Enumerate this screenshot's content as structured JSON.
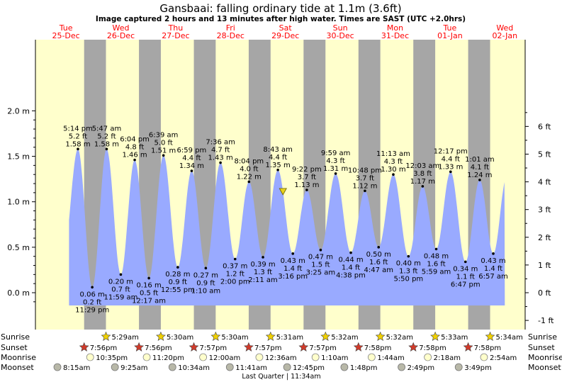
{
  "title": "Gansbaai: falling  ordinary tide at 1.1m (3.6ft)",
  "subtitle": "Image captured 2 hours and 13 minutes after high water. Times are SAST (UTC +2.0hrs)",
  "colors": {
    "day": "#ffffcc",
    "night": "#a6a6a6",
    "tide_fill": "#99aaff",
    "date_text": "#ff0000",
    "sunset_star": "#d03a2a",
    "sunrise_star": "#f0d000"
  },
  "days": [
    {
      "dow": "Tue",
      "date": "25-Dec"
    },
    {
      "dow": "Wed",
      "date": "26-Dec"
    },
    {
      "dow": "Thu",
      "date": "27-Dec"
    },
    {
      "dow": "Fri",
      "date": "28-Dec"
    },
    {
      "dow": "Sat",
      "date": "29-Dec"
    },
    {
      "dow": "Sun",
      "date": "30-Dec"
    },
    {
      "dow": "Mon",
      "date": "31-Dec"
    },
    {
      "dow": "Tue",
      "date": "01-Jan"
    },
    {
      "dow": "Wed",
      "date": "02-Jan"
    }
  ],
  "chart_data": {
    "type": "area",
    "title": "Gansbaai: falling  ordinary tide at 1.1m (3.6ft)",
    "left_axis": {
      "unit": "m",
      "range": [
        -0.2,
        2.0
      ],
      "ticks": [
        "2.0 m",
        "1.5 m",
        "1.0 m",
        "0.5 m",
        "0.0 m"
      ],
      "tick_values": [
        2.0,
        1.5,
        1.0,
        0.5,
        0.0
      ]
    },
    "right_axis": {
      "unit": "ft",
      "ticks": [
        "6 ft",
        "5 ft",
        "4 ft",
        "3 ft",
        "2 ft",
        "1 ft",
        "0 ft",
        "-1 ft"
      ],
      "tick_values": [
        6,
        5,
        4,
        3,
        2,
        1,
        0,
        -1
      ]
    },
    "x_axis": {
      "start": "2018-12-25 00:00",
      "end": "2019-01-02 00:00"
    },
    "current": {
      "time": "2018-12-29 10:56",
      "height_m": 1.1
    },
    "tides": [
      {
        "type": "high",
        "time": "2018-12-25 17:14",
        "time_label": "5:14 pm",
        "ft": "5.2 ft",
        "m": 1.58,
        "m_label": "1.58 m"
      },
      {
        "type": "low",
        "time": "2018-12-25 23:29",
        "time_label": "11:29 pm",
        "ft": "0.2 ft",
        "m": 0.06,
        "m_label": "0.06 m"
      },
      {
        "type": "high",
        "time": "2018-12-26 05:47",
        "time_label": "5:47 am",
        "ft": "5.2 ft",
        "m": 1.58,
        "m_label": "1.58 m"
      },
      {
        "type": "low",
        "time": "2018-12-26 11:59",
        "time_label": "11:59 am",
        "ft": "0.7 ft",
        "m": 0.2,
        "m_label": "0.20 m"
      },
      {
        "type": "high",
        "time": "2018-12-26 18:04",
        "time_label": "6:04 pm",
        "ft": "4.8 ft",
        "m": 1.46,
        "m_label": "1.46 m"
      },
      {
        "type": "low",
        "time": "2018-12-27 00:17",
        "time_label": "12:17 am",
        "ft": "0.5 ft",
        "m": 0.16,
        "m_label": "0.16 m"
      },
      {
        "type": "high",
        "time": "2018-12-27 06:39",
        "time_label": "6:39 am",
        "ft": "5.0 ft",
        "m": 1.51,
        "m_label": "1.51 m"
      },
      {
        "type": "low",
        "time": "2018-12-27 12:55",
        "time_label": "12:55 pm",
        "ft": "0.9 ft",
        "m": 0.28,
        "m_label": "0.28 m"
      },
      {
        "type": "high",
        "time": "2018-12-27 18:59",
        "time_label": "6:59 pm",
        "ft": "4.4 ft",
        "m": 1.34,
        "m_label": "1.34 m"
      },
      {
        "type": "low",
        "time": "2018-12-28 01:10",
        "time_label": "1:10 am",
        "ft": "0.9 ft",
        "m": 0.27,
        "m_label": "0.27 m"
      },
      {
        "type": "high",
        "time": "2018-12-28 07:36",
        "time_label": "7:36 am",
        "ft": "4.7 ft",
        "m": 1.43,
        "m_label": "1.43 m"
      },
      {
        "type": "low",
        "time": "2018-12-28 14:00",
        "time_label": "2:00 pm",
        "ft": "1.2 ft",
        "m": 0.37,
        "m_label": "0.37 m"
      },
      {
        "type": "high",
        "time": "2018-12-28 20:04",
        "time_label": "8:04 pm",
        "ft": "4.0 ft",
        "m": 1.22,
        "m_label": "1.22 m"
      },
      {
        "type": "low",
        "time": "2018-12-29 02:11",
        "time_label": "2:11 am",
        "ft": "1.3 ft",
        "m": 0.39,
        "m_label": "0.39 m"
      },
      {
        "type": "high",
        "time": "2018-12-29 08:43",
        "time_label": "8:43 am",
        "ft": "4.4 ft",
        "m": 1.35,
        "m_label": "1.35 m"
      },
      {
        "type": "low",
        "time": "2018-12-29 15:16",
        "time_label": "3:16 pm",
        "ft": "1.4 ft",
        "m": 0.43,
        "m_label": "0.43 m"
      },
      {
        "type": "high",
        "time": "2018-12-29 21:22",
        "time_label": "9:22 pm",
        "ft": "3.7 ft",
        "m": 1.13,
        "m_label": "1.13 m"
      },
      {
        "type": "low",
        "time": "2018-12-30 03:25",
        "time_label": "3:25 am",
        "ft": "1.5 ft",
        "m": 0.47,
        "m_label": "0.47 m"
      },
      {
        "type": "high",
        "time": "2018-12-30 09:59",
        "time_label": "9:59 am",
        "ft": "4.3 ft",
        "m": 1.31,
        "m_label": "1.31 m"
      },
      {
        "type": "low",
        "time": "2018-12-30 16:38",
        "time_label": "4:38 pm",
        "ft": "1.4 ft",
        "m": 0.44,
        "m_label": "0.44 m"
      },
      {
        "type": "high",
        "time": "2018-12-30 22:48",
        "time_label": "10:48 pm",
        "ft": "3.7 ft",
        "m": 1.12,
        "m_label": "1.12 m"
      },
      {
        "type": "low",
        "time": "2018-12-31 04:47",
        "time_label": "4:47 am",
        "ft": "1.6 ft",
        "m": 0.5,
        "m_label": "0.50 m"
      },
      {
        "type": "high",
        "time": "2018-12-31 11:13",
        "time_label": "11:13 am",
        "ft": "4.3 ft",
        "m": 1.3,
        "m_label": "1.30 m"
      },
      {
        "type": "low",
        "time": "2018-12-31 17:50",
        "time_label": "5:50 pm",
        "ft": "1.3 ft",
        "m": 0.4,
        "m_label": "0.40 m"
      },
      {
        "type": "high",
        "time": "2019-01-01 00:03",
        "time_label": "12:03 am",
        "ft": "3.8 ft",
        "m": 1.17,
        "m_label": "1.17 m"
      },
      {
        "type": "low",
        "time": "2019-01-01 05:59",
        "time_label": "5:59 am",
        "ft": "1.6 ft",
        "m": 0.48,
        "m_label": "0.48 m"
      },
      {
        "type": "high",
        "time": "2019-01-01 12:17",
        "time_label": "12:17 pm",
        "ft": "4.4 ft",
        "m": 1.33,
        "m_label": "1.33 m"
      },
      {
        "type": "low",
        "time": "2019-01-01 18:47",
        "time_label": "6:47 pm",
        "ft": "1.1 ft",
        "m": 0.34,
        "m_label": "0.34 m"
      },
      {
        "type": "high",
        "time": "2019-01-02 01:01",
        "time_label": "1:01 am",
        "ft": "4.1 ft",
        "m": 1.24,
        "m_label": "1.24 m"
      },
      {
        "type": "low",
        "time": "2019-01-02 06:57",
        "time_label": "6:57 am",
        "ft": "1.4 ft",
        "m": 0.43,
        "m_label": "0.43 m"
      }
    ],
    "nights": [
      [
        "2018-12-25 19:56",
        "2018-12-26 05:29"
      ],
      [
        "2018-12-26 19:56",
        "2018-12-27 05:30"
      ],
      [
        "2018-12-27 19:57",
        "2018-12-28 05:30"
      ],
      [
        "2018-12-28 19:57",
        "2018-12-29 05:31"
      ],
      [
        "2018-12-29 19:57",
        "2018-12-30 05:32"
      ],
      [
        "2018-12-30 19:58",
        "2018-12-31 05:32"
      ],
      [
        "2018-12-31 19:58",
        "2019-01-01 05:33"
      ],
      [
        "2019-01-01 19:58",
        "2019-01-02 05:34"
      ]
    ]
  },
  "rows": {
    "sunrise": {
      "label": "Sunrise",
      "items": [
        {
          "time": "2018-12-26 05:29",
          "text": "5:29am"
        },
        {
          "time": "2018-12-27 05:30",
          "text": "5:30am"
        },
        {
          "time": "2018-12-28 05:30",
          "text": "5:30am"
        },
        {
          "time": "2018-12-29 05:31",
          "text": "5:31am"
        },
        {
          "time": "2018-12-30 05:32",
          "text": "5:32am"
        },
        {
          "time": "2018-12-31 05:32",
          "text": "5:32am"
        },
        {
          "time": "2019-01-01 05:33",
          "text": "5:33am"
        },
        {
          "time": "2019-01-02 05:34",
          "text": "5:34am"
        }
      ]
    },
    "sunset": {
      "label": "Sunset",
      "items": [
        {
          "time": "2018-12-25 19:56",
          "text": "7:56pm"
        },
        {
          "time": "2018-12-26 19:56",
          "text": "7:56pm"
        },
        {
          "time": "2018-12-27 19:57",
          "text": "7:57pm"
        },
        {
          "time": "2018-12-28 19:57",
          "text": "7:57pm"
        },
        {
          "time": "2018-12-29 19:57",
          "text": "7:57pm"
        },
        {
          "time": "2018-12-30 19:58",
          "text": "7:58pm"
        },
        {
          "time": "2018-12-31 19:58",
          "text": "7:58pm"
        },
        {
          "time": "2019-01-01 19:58",
          "text": "7:58pm"
        }
      ]
    },
    "moonrise": {
      "label": "Moonrise",
      "items": [
        {
          "time": "2018-12-25 22:35",
          "text": "10:35pm"
        },
        {
          "time": "2018-12-26 23:20",
          "text": "11:20pm"
        },
        {
          "time": "2018-12-28 00:00",
          "text": "12:00am"
        },
        {
          "time": "2018-12-29 00:36",
          "text": "12:36am"
        },
        {
          "time": "2018-12-30 01:10",
          "text": "1:10am"
        },
        {
          "time": "2018-12-31 01:44",
          "text": "1:44am"
        },
        {
          "time": "2019-01-01 02:18",
          "text": "2:18am"
        },
        {
          "time": "2019-01-02 02:54",
          "text": "2:54am"
        }
      ]
    },
    "moonset": {
      "label": "Moonset",
      "items": [
        {
          "time": "2018-12-25 08:15",
          "text": "8:15am"
        },
        {
          "time": "2018-12-26 09:25",
          "text": "9:25am"
        },
        {
          "time": "2018-12-27 10:34",
          "text": "10:34am"
        },
        {
          "time": "2018-12-28 11:41",
          "text": "11:41am"
        },
        {
          "time": "2018-12-29 12:45",
          "text": "12:45pm"
        },
        {
          "time": "2018-12-30 13:48",
          "text": "1:48pm"
        },
        {
          "time": "2018-12-31 14:49",
          "text": "2:49pm"
        },
        {
          "time": "2019-01-01 15:49",
          "text": "3:49pm"
        }
      ]
    }
  },
  "moon_phase_note": "Last Quarter | 11:34am"
}
